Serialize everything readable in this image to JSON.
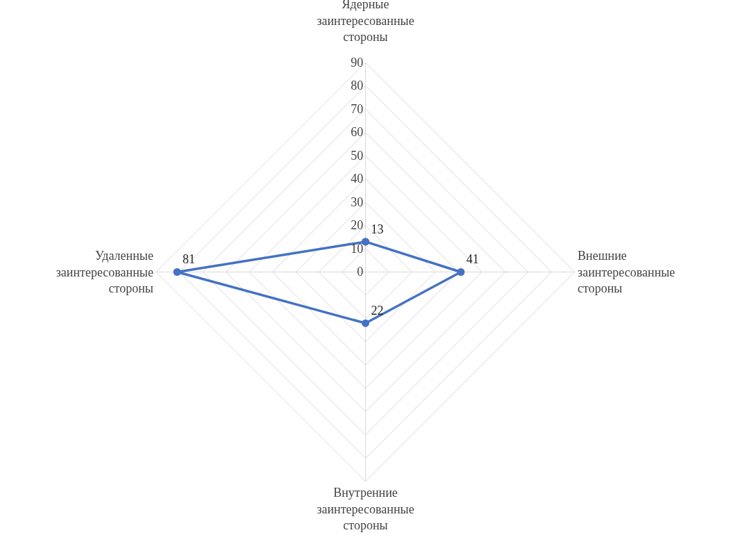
{
  "chart_data": {
    "type": "radar",
    "categories": [
      "Ядерные заинтересованные стороны",
      "Внешние заинтересованные стороны",
      "Внутренние заинтересованные стороны",
      "Удаленные заинтересованные стороны"
    ],
    "series": [
      {
        "color": "#4472c4",
        "values": [
          13,
          41,
          22,
          81
        ]
      }
    ],
    "ylim": [
      0,
      90
    ],
    "yticks": [
      0,
      10,
      20,
      30,
      40,
      50,
      60,
      70,
      80,
      90
    ],
    "data_labels": true,
    "marker": "circle",
    "grid": true,
    "legend": false
  }
}
